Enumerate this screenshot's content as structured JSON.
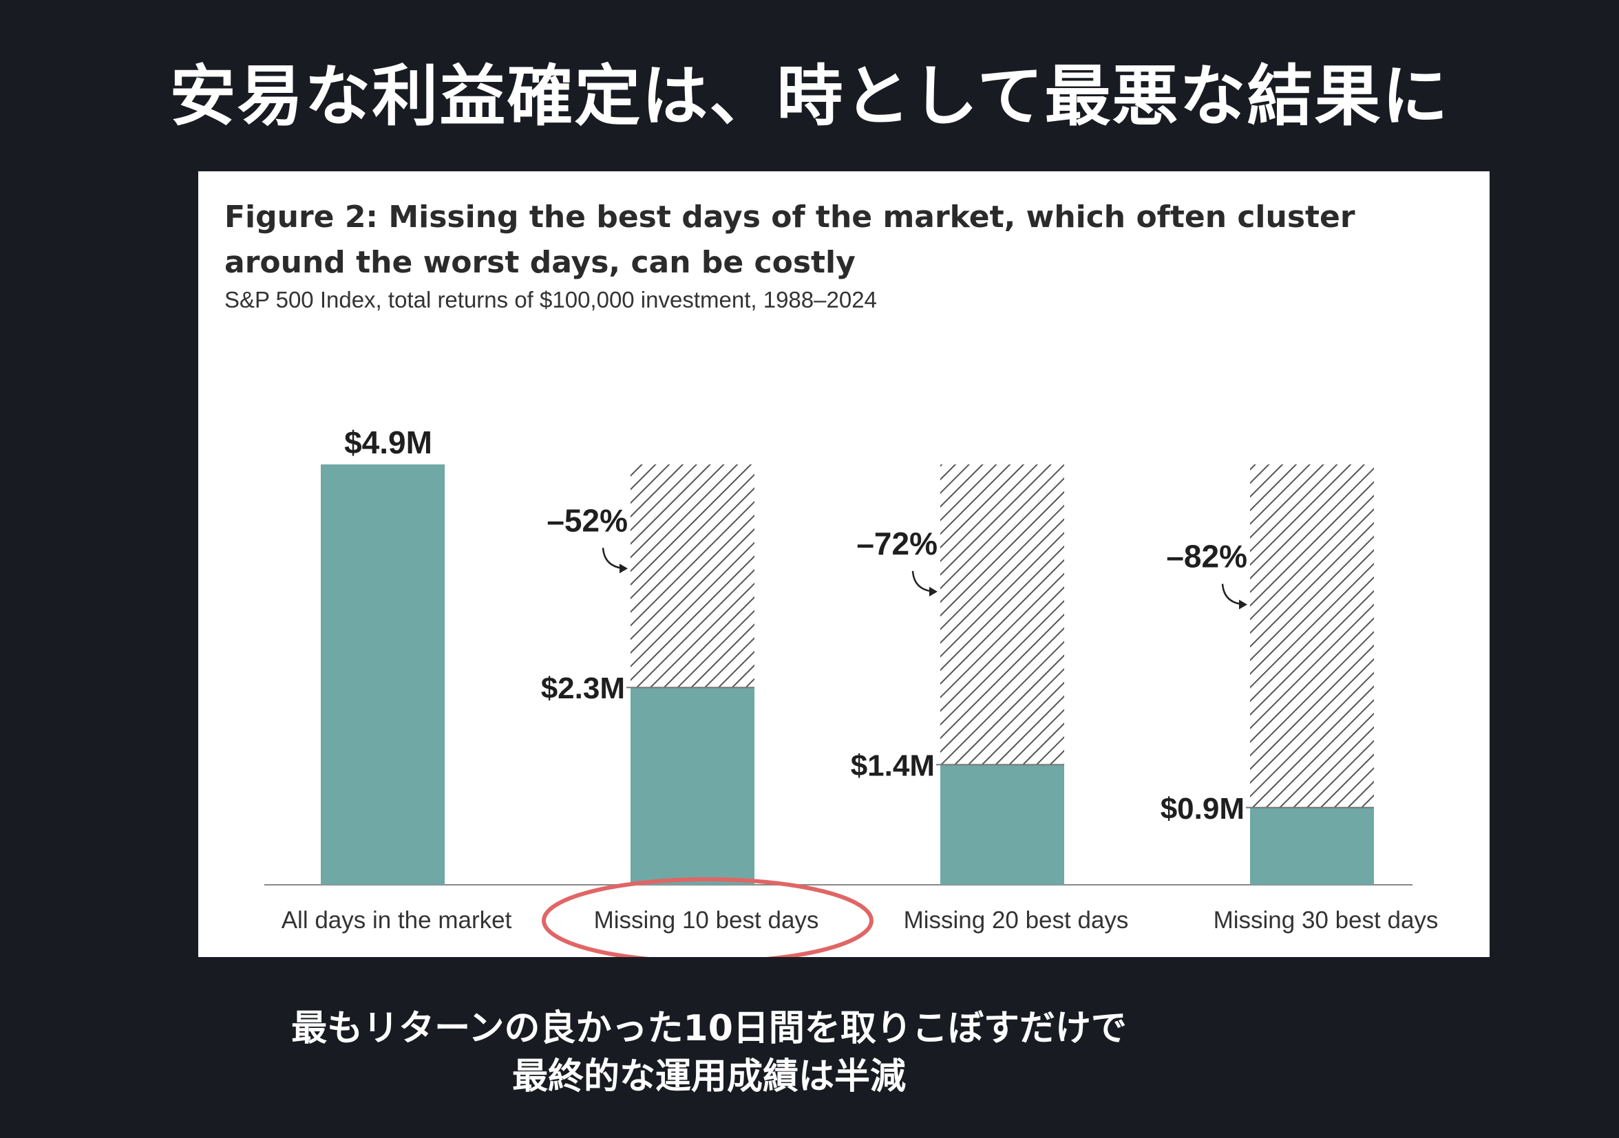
{
  "slide": {
    "title": "安易な利益確定は、時として最悪な結果に",
    "caption_line1": "最もリターンの良かった10日間を取りこぼすだけで",
    "caption_line2": "最終的な運用成績は半減"
  },
  "colors": {
    "background": "#181c22",
    "bar": "#6fa8a4",
    "hatch": "#555555",
    "highlight_ellipse": "#e06666"
  },
  "chart_data": {
    "type": "bar",
    "title": "Figure 2: Missing the best days of the market, which often cluster around the worst days, can be costly",
    "subtitle": "S&P 500 Index, total returns of $100,000 investment, 1988–2024",
    "categories": [
      "All days in the market",
      "Missing 10 best days",
      "Missing 20 best days",
      "Missing 30 best days"
    ],
    "values": [
      4.9,
      2.3,
      1.4,
      0.9
    ],
    "value_labels": [
      "$4.9M",
      "$2.3M",
      "$1.4M",
      "$0.9M"
    ],
    "reference_value": 4.9,
    "shortfall_labels": [
      "",
      "–52%",
      "–72%",
      "–82%"
    ],
    "unit": "$M",
    "ylim": [
      0,
      4.9
    ],
    "grid": false,
    "legend": "none",
    "highlighted_category": "Missing 10 best days"
  }
}
